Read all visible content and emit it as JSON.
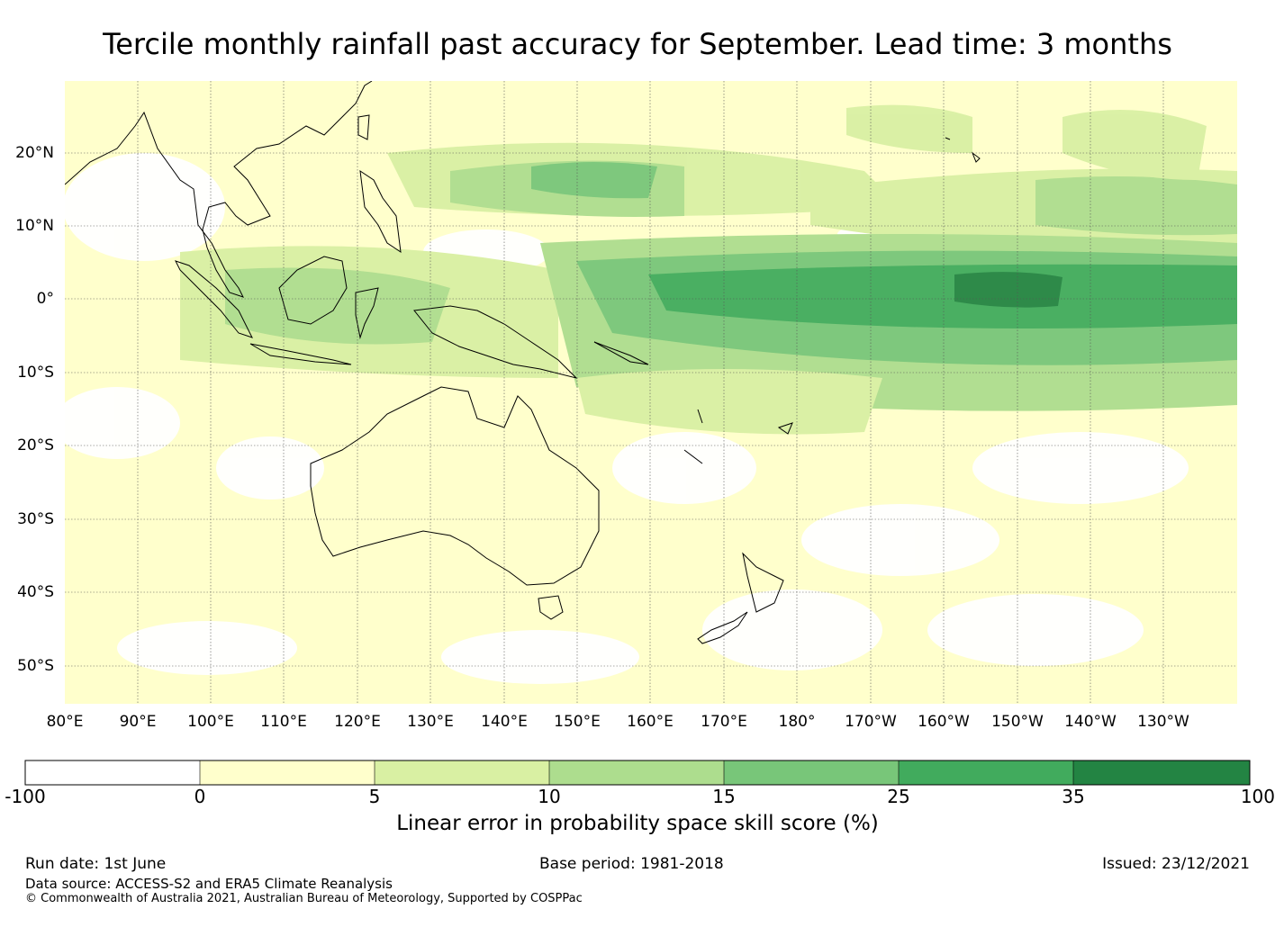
{
  "title": "Tercile monthly rainfall past accuracy for September. Lead time: 3 months",
  "map": {
    "lat_labels": [
      "20°N",
      "10°N",
      "0°",
      "10°S",
      "20°S",
      "30°S",
      "40°S",
      "50°S"
    ],
    "lon_labels": [
      "80°E",
      "90°E",
      "100°E",
      "110°E",
      "120°E",
      "130°E",
      "140°E",
      "150°E",
      "160°E",
      "170°E",
      "180°",
      "170°W",
      "160°W",
      "150°W",
      "140°W",
      "130°W"
    ],
    "regions": [
      "Southeast Asia",
      "Maritime Continent",
      "Australia",
      "New Zealand",
      "Papua New Guinea",
      "Pacific Ocean"
    ]
  },
  "colorbar": {
    "ticks": [
      "-100",
      "0",
      "5",
      "10",
      "15",
      "25",
      "35",
      "100"
    ],
    "colors": [
      "#ffffff",
      "#ffffcc",
      "#d9f0a3",
      "#addd8e",
      "#78c679",
      "#41ab5d",
      "#238443"
    ],
    "label": "Linear error in probability space skill score (%)"
  },
  "footer": {
    "run_date": "Run date: 1st June",
    "base_period": "Base period: 1981-2018",
    "issued": "Issued: 23/12/2021",
    "data_source": "Data source: ACCESS-S2 and ERA5 Climate Reanalysis",
    "copyright": "© Commonwealth of Australia 2021, Australian Bureau of Meteorology, Supported by COSPPac"
  }
}
